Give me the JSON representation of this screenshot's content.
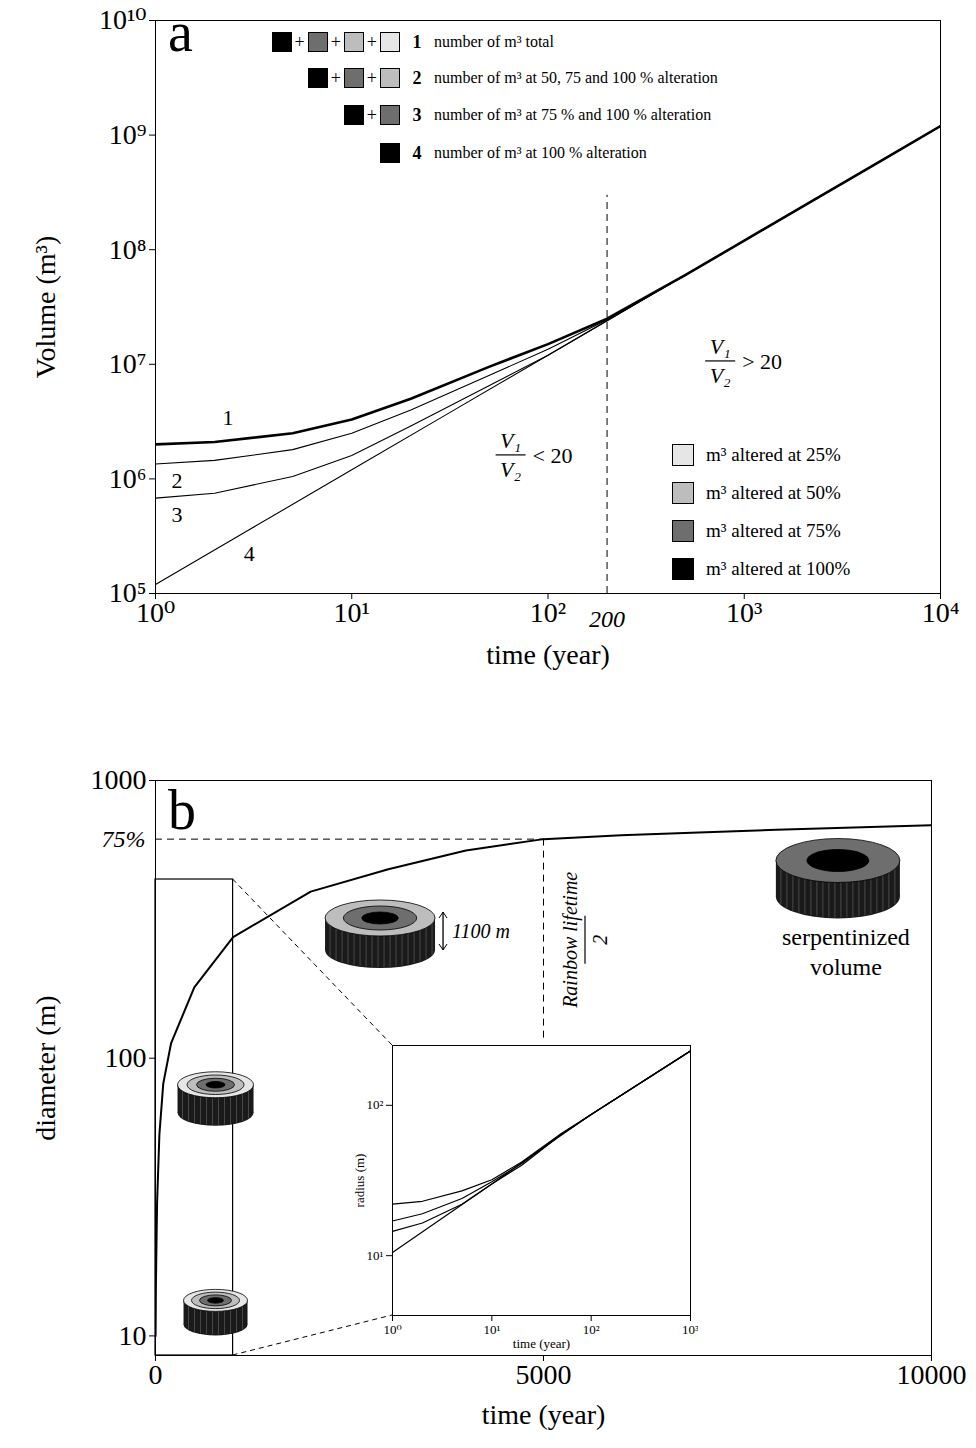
{
  "chart_data": [
    {
      "title": "a",
      "type": "line",
      "log": true,
      "xlabel": "time (year)",
      "ylabel": "Volume (m³)",
      "xlim": [
        1,
        10000
      ],
      "ylim": [
        100000,
        10000000000
      ],
      "xticks": [
        {
          "value": 1,
          "label": "10⁰"
        },
        {
          "value": 10,
          "label": "10¹"
        },
        {
          "value": 100,
          "label": "10²"
        },
        {
          "value": 1000,
          "label": "10³"
        },
        {
          "value": 10000,
          "label": "10⁴"
        }
      ],
      "yticks": [
        {
          "value": 100000,
          "label": "10⁵"
        },
        {
          "value": 1000000,
          "label": "10⁶"
        },
        {
          "value": 10000000,
          "label": "10⁷"
        },
        {
          "value": 100000000,
          "label": "10⁸"
        },
        {
          "value": 1000000000,
          "label": "10⁹"
        },
        {
          "value": 10000000000,
          "label": "10¹⁰"
        }
      ],
      "separator": "+",
      "alteration_levels": [
        {
          "percent": 25,
          "label": "m³ altered at 25%",
          "color": "#e6e6e6"
        },
        {
          "percent": 50,
          "label": "m³ altered at 50%",
          "color": "#bdbdbd"
        },
        {
          "percent": 75,
          "label": "m³ altered at 75%",
          "color": "#6e6e6e"
        },
        {
          "percent": 100,
          "label": "m³ altered at 100%",
          "color": "#000000"
        }
      ],
      "series": [
        {
          "name": "1",
          "description": "number of m³ total",
          "levels": [
            100,
            75,
            50,
            25
          ],
          "color": "#000000",
          "x": [
            1,
            2,
            5,
            10,
            20,
            50,
            100,
            200,
            500,
            1000,
            2000,
            5000,
            10000
          ],
          "values": [
            2000000,
            2100000,
            2500000,
            3300000,
            5000000,
            9500000,
            15000000,
            25000000,
            60000000,
            120000000,
            240000000,
            600000000,
            1200000000
          ]
        },
        {
          "name": "2",
          "description": "number of m³ at 50, 75 and 100 % alteration",
          "levels": [
            100,
            75,
            50
          ],
          "color": "#000000",
          "x": [
            1,
            2,
            5,
            10,
            20,
            50,
            100,
            200,
            500,
            1000,
            2000,
            5000,
            10000
          ],
          "values": [
            1350000,
            1450000,
            1800000,
            2500000,
            4000000,
            8000000,
            13500000,
            24500000,
            60000000,
            120000000,
            240000000,
            600000000,
            1200000000
          ]
        },
        {
          "name": "3",
          "description": "number of m³ at 75 % and 100 % alteration",
          "levels": [
            100,
            75
          ],
          "color": "#000000",
          "x": [
            1,
            2,
            5,
            10,
            20,
            50,
            100,
            200,
            500,
            1000,
            2000,
            5000,
            10000
          ],
          "values": [
            680000,
            750000,
            1050000,
            1600000,
            2900000,
            6500000,
            12000000,
            24000000,
            60000000,
            120000000,
            240000000,
            600000000,
            1200000000
          ]
        },
        {
          "name": "4",
          "description": "number of m³ at 100 % alteration",
          "levels": [
            100
          ],
          "color": "#000000",
          "x": [
            1,
            3,
            10,
            30,
            100,
            200,
            1000,
            10000
          ],
          "values": [
            120000,
            360000,
            1200000,
            3600000,
            12000000,
            24000000,
            120000000,
            1200000000
          ]
        }
      ],
      "vline": {
        "x": 200,
        "label": "200"
      },
      "annotations": [
        {
          "numerator": "V₁",
          "denominator": "V₂",
          "relation": "< 20"
        },
        {
          "numerator": "V₁",
          "denominator": "V₂",
          "relation": "> 20"
        }
      ]
    },
    {
      "title": "b",
      "type": "line",
      "log": "y",
      "xlabel": "time (year)",
      "ylabel": "diameter (m)",
      "xlim": [
        0,
        10000
      ],
      "ylim": [
        8.5,
        1000
      ],
      "xticks": [
        0,
        5000,
        10000
      ],
      "yticks": [
        10,
        100,
        1000
      ],
      "series": [
        {
          "color": "#000000",
          "x": [
            1,
            5,
            20,
            50,
            100,
            200,
            500,
            1000,
            2000,
            3000,
            4000,
            5000,
            6000,
            7000,
            8000,
            10000
          ],
          "values": [
            10,
            15,
            30,
            53,
            81,
            113,
            180,
            273,
            398,
            479,
            560,
            615,
            635,
            650,
            665,
            690
          ]
        }
      ],
      "reference_line": {
        "y": 615,
        "label": "75%"
      },
      "rainbow_line": {
        "x": 5000,
        "label": "Rainbow lifetime",
        "label_denominator": "2"
      },
      "zoom": {
        "x": [
          0,
          1000
        ],
        "y": [
          8.5,
          440
        ]
      },
      "icon_labels": {
        "height": "1100 m",
        "volume": "serpentinized volume"
      }
    },
    {
      "type": "line",
      "log": true,
      "xlabel": "time (year)",
      "ylabel": "radius (m)",
      "xlim": [
        1,
        1000
      ],
      "ylim": [
        4,
        250
      ],
      "xticks": [
        {
          "value": 1,
          "label": "10⁰"
        },
        {
          "value": 10,
          "label": "10¹"
        },
        {
          "value": 100,
          "label": "10²"
        },
        {
          "value": 1000,
          "label": "10³"
        }
      ],
      "yticks": [
        {
          "value": 10,
          "label": "10¹"
        },
        {
          "value": 100,
          "label": "10²"
        }
      ],
      "series": [
        {
          "color": "#000000",
          "x": [
            1,
            2,
            5,
            10,
            20,
            50,
            100,
            1000
          ],
          "values": [
            22,
            23,
            27,
            32,
            42,
            65,
            87,
            230
          ]
        },
        {
          "color": "#000000",
          "x": [
            1,
            2,
            5,
            10,
            20,
            50,
            100,
            1000
          ],
          "values": [
            17,
            19,
            24,
            31,
            41,
            64,
            87,
            230
          ]
        },
        {
          "color": "#000000",
          "x": [
            1,
            2,
            5,
            10,
            20,
            50,
            100,
            1000
          ],
          "values": [
            14.5,
            16.5,
            22,
            30,
            40,
            64,
            87,
            230
          ]
        },
        {
          "color": "#000000",
          "x": [
            1,
            10,
            30,
            100,
            1000
          ],
          "values": [
            10.5,
            30,
            50,
            87,
            230
          ]
        }
      ]
    }
  ]
}
